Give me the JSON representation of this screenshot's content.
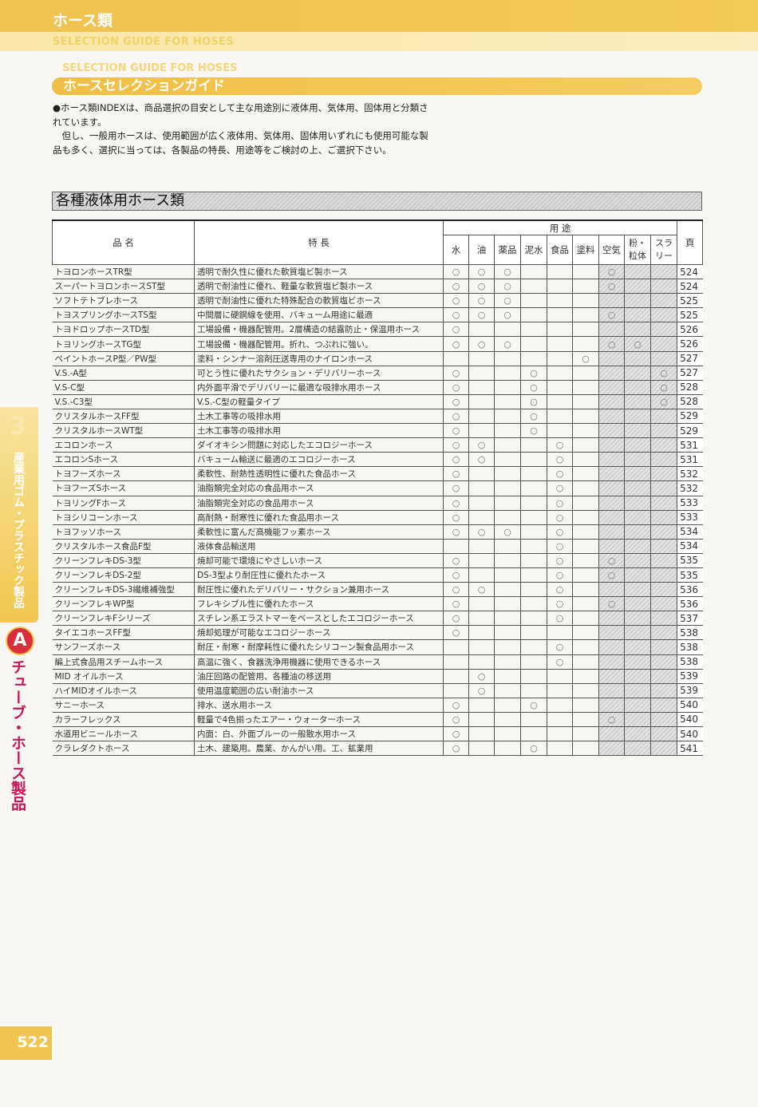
{
  "header": {
    "title": "ホース類",
    "subtitle": "SELECTION GUIDE FOR HOSES"
  },
  "guide": {
    "subtitle": "SELECTION GUIDE FOR HOSES",
    "title": "ホースセレクションガイド"
  },
  "intro": {
    "p1": "●ホース類INDEXは、商品選択の目安として主な用途別に液体用、気体用、固体用と分類されています。",
    "p2": "　但し、一般用ホースは、使用範囲が広く液体用、気体用、固体用いずれにも使用可能な製品も多く、選択に当っては、各製品の特長、用途等をご検討の上、ご選択下さい。"
  },
  "section_title": "各種液体用ホース類",
  "table": {
    "col_name": "品 名",
    "col_feature": "特 長",
    "col_usage": "用 途",
    "col_page": "頁",
    "usage_cols": [
      "水",
      "油",
      "薬品",
      "泥水",
      "食品",
      "塗料",
      "空気",
      "粉・粒体",
      "スラリー"
    ],
    "mark": "○",
    "rows": [
      {
        "name": "トヨロンホースTR型",
        "feature": "透明で耐久性に優れた軟質塩ビ製ホース",
        "marks": "111000100",
        "page": "524"
      },
      {
        "name": "スーパートヨロンホースST型",
        "feature": "透明で耐油性に優れ、軽量な軟質塩ビ製ホース",
        "marks": "111000100",
        "page": "524"
      },
      {
        "name": "ソフトテトブレホース",
        "feature": "透明で耐油性に優れた特殊配合の軟質塩ビホース",
        "marks": "111000000",
        "page": "525"
      },
      {
        "name": "トヨスプリングホースTS型",
        "feature": "中間層に硬鋼線を使用、バキューム用途に最適",
        "marks": "111000100",
        "page": "525"
      },
      {
        "name": "トヨドロップホースTD型",
        "feature": "工場設備・機器配管用。2層構造の結露防止・保温用ホース",
        "marks": "100000000",
        "page": "526"
      },
      {
        "name": "トヨリングホースTG型",
        "feature": "工場設備・機器配管用。折れ、つぶれに強い。",
        "marks": "111000110",
        "page": "526"
      },
      {
        "name": "ペイントホースP型／PW型",
        "feature": "塗料・シンナー溶剤圧送専用のナイロンホース",
        "marks": "000001000",
        "page": "527"
      },
      {
        "name": "V.S.-A型",
        "feature": "可とう性に優れたサクション・デリバリーホース",
        "marks": "100100001",
        "page": "527"
      },
      {
        "name": "V.S-C型",
        "feature": "内外面平滑でデリバリーに最適な吸排水用ホース",
        "marks": "100100001",
        "page": "528"
      },
      {
        "name": "V.S.-C3型",
        "feature": "V.S.-C型の軽量タイプ",
        "marks": "100100001",
        "page": "528"
      },
      {
        "name": "クリスタルホースFF型",
        "feature": "土木工事等の吸排水用",
        "marks": "100100000",
        "page": "529"
      },
      {
        "name": "クリスタルホースWT型",
        "feature": "土木工事等の吸排水用",
        "marks": "100100000",
        "page": "529"
      },
      {
        "name": "エコロンホース",
        "feature": "ダイオキシン問題に対応したエコロジーホース",
        "marks": "110010000",
        "page": "531"
      },
      {
        "name": "エコロンSホース",
        "feature": "バキューム輸送に最適のエコロジーホース",
        "marks": "110010000",
        "page": "531"
      },
      {
        "name": "トヨフーズホース",
        "feature": "柔軟性、耐熱性透明性に優れた食品ホース",
        "marks": "100010000",
        "page": "532"
      },
      {
        "name": "トヨフーズSホース",
        "feature": "油脂類完全対応の食品用ホース",
        "marks": "100010000",
        "page": "532"
      },
      {
        "name": "トヨリングFホース",
        "feature": "油脂類完全対応の食品用ホース",
        "marks": "100010000",
        "page": "533"
      },
      {
        "name": "トヨシリコーンホース",
        "feature": "高耐熱・耐寒性に優れた食品用ホース",
        "marks": "100010000",
        "page": "533"
      },
      {
        "name": "トヨフッソホース",
        "feature": "柔軟性に富んだ高機能フッ素ホース",
        "marks": "111010000",
        "page": "534"
      },
      {
        "name": "クリスタルホース食品F型",
        "feature": "液体食品輸送用",
        "marks": "000010000",
        "page": "534"
      },
      {
        "name": "クリーンフレキDS-3型",
        "feature": "焼却可能で環境にやさしいホース",
        "marks": "100010100",
        "page": "535"
      },
      {
        "name": "クリーンフレキDS-2型",
        "feature": "DS-3型より耐圧性に優れたホース",
        "marks": "100010100",
        "page": "535"
      },
      {
        "name": "クリーンフレキDS-3繊維補強型",
        "feature": "耐圧性に優れたデリバリー・サクション兼用ホース",
        "marks": "110010000",
        "page": "536"
      },
      {
        "name": "クリーンフレキWP型",
        "feature": "フレキシブル性に優れたホース",
        "marks": "100010100",
        "page": "536"
      },
      {
        "name": "クリーンフレキFシリーズ",
        "feature": "スチレン系エラストマーをベースとしたエコロジーホース",
        "marks": "100010000",
        "page": "537"
      },
      {
        "name": "タイエコホースFF型",
        "feature": "焼却処理が可能なエコロジーホース",
        "marks": "100000000",
        "page": "538"
      },
      {
        "name": "サンフーズホース",
        "feature": "耐圧・耐寒・耐摩耗性に優れたシリコーン製食品用ホース",
        "marks": "000010000",
        "page": "538"
      },
      {
        "name": "編上式食品用スチームホース",
        "feature": "高温に強く、食器洗浄用機器に使用できるホース",
        "marks": "000010000",
        "page": "538"
      },
      {
        "name": "MID オイルホース",
        "feature": "油圧回路の配管用、各種油の移送用",
        "marks": "010000000",
        "page": "539"
      },
      {
        "name": "ハイMIDオイルホース",
        "feature": "使用温度範囲の広い耐油ホース",
        "marks": "010000000",
        "page": "539"
      },
      {
        "name": "サニーホース",
        "feature": "排水、送水用ホース",
        "marks": "100100000",
        "page": "540"
      },
      {
        "name": "カラーフレックス",
        "feature": "軽量で4色揃ったエアー・ウォーターホース",
        "marks": "100000100",
        "page": "540"
      },
      {
        "name": "水道用ビニールホース",
        "feature": "内面：白、外面ブルーの一般散水用ホース",
        "marks": "100000000",
        "page": "540"
      },
      {
        "name": "クラレダクトホース",
        "feature": "土木、建築用。農業、かんがい用。工、鉱業用",
        "marks": "100100000",
        "page": "541"
      }
    ]
  },
  "side_tab": {
    "chapter_num": "3",
    "chapter_title": "産業用ゴム・プラスチック製品",
    "section_letter": "A",
    "section_title": "チューブ・ホース製品"
  },
  "page_number": "522",
  "colors": {
    "accent_yellow": "#f0c24e",
    "section_red": "#d8303a",
    "section_pink": "#c2185b"
  }
}
